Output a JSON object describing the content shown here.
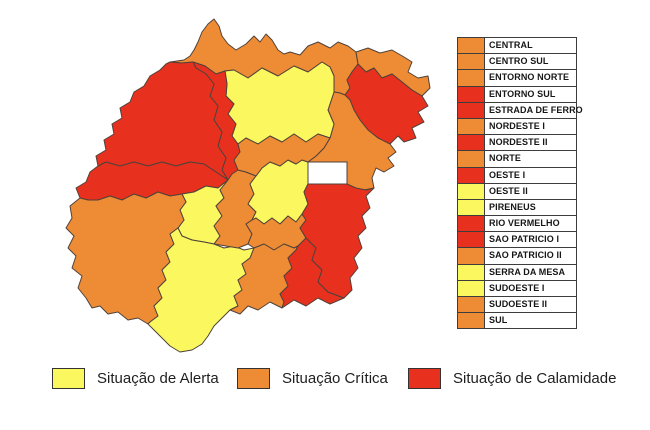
{
  "status_colors": {
    "alerta": "#FAF75F",
    "critica": "#EE8B35",
    "calamidade": "#E8301E"
  },
  "region_table": {
    "rows": [
      {
        "id": "central",
        "name": "CENTRAL",
        "status": "critica"
      },
      {
        "id": "centro-sul",
        "name": "CENTRO SUL",
        "status": "critica"
      },
      {
        "id": "entorno-norte",
        "name": "ENTORNO NORTE",
        "status": "critica"
      },
      {
        "id": "entorno-sul",
        "name": "ENTORNO SUL",
        "status": "calamidade"
      },
      {
        "id": "estrada-de-ferro",
        "name": "ESTRADA DE FERRO",
        "status": "calamidade"
      },
      {
        "id": "nordeste-1",
        "name": "NORDESTE I",
        "status": "critica"
      },
      {
        "id": "nordeste-2",
        "name": "NORDESTE II",
        "status": "calamidade"
      },
      {
        "id": "norte",
        "name": "NORTE",
        "status": "critica"
      },
      {
        "id": "oeste-1",
        "name": "OESTE I",
        "status": "calamidade"
      },
      {
        "id": "oeste-2",
        "name": "OESTE II",
        "status": "alerta"
      },
      {
        "id": "pireneus",
        "name": "PIRENEUS",
        "status": "alerta"
      },
      {
        "id": "rio-vermelho",
        "name": "RIO VERMELHO",
        "status": "calamidade"
      },
      {
        "id": "sao-patricio-1",
        "name": "SAO PATRICIO I",
        "status": "calamidade"
      },
      {
        "id": "sao-patricio-2",
        "name": "SAO PATRICIO II",
        "status": "critica"
      },
      {
        "id": "serra-da-mesa",
        "name": "SERRA DA MESA",
        "status": "alerta"
      },
      {
        "id": "sudoeste-1",
        "name": "SUDOESTE I",
        "status": "alerta"
      },
      {
        "id": "sudoeste-2",
        "name": "SUDOESTE II",
        "status": "critica"
      },
      {
        "id": "sul",
        "name": "SUL",
        "status": "critica"
      }
    ]
  },
  "bottom_legend": {
    "items": [
      {
        "label": "Situação de Alerta",
        "status": "alerta"
      },
      {
        "label": "Situação Crítica",
        "status": "critica"
      },
      {
        "label": "Situação de Calamidade",
        "status": "calamidade"
      }
    ]
  }
}
